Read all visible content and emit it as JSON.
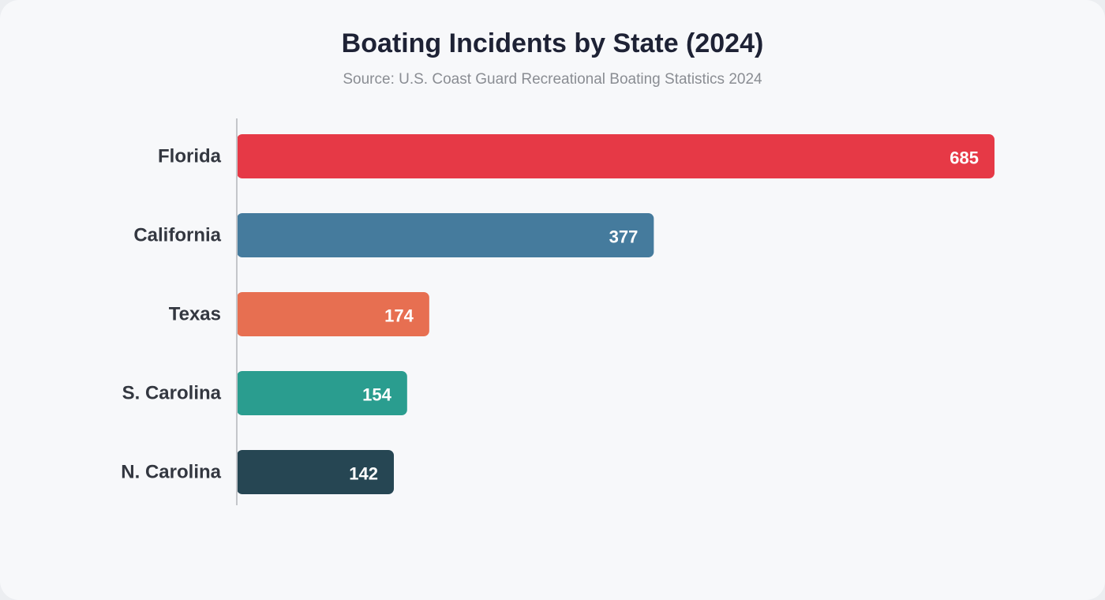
{
  "chart_data": {
    "type": "bar",
    "orientation": "horizontal",
    "title": "Boating Incidents by State (2024)",
    "subtitle": "Source: U.S. Coast Guard Recreational Boating Statistics 2024",
    "categories": [
      "Florida",
      "California",
      "Texas",
      "S. Carolina",
      "N. Carolina"
    ],
    "values": [
      685,
      377,
      174,
      154,
      142
    ],
    "colors": [
      "#e63946",
      "#457b9d",
      "#e76f51",
      "#2a9d8f",
      "#264653"
    ],
    "xlim": [
      0,
      685
    ],
    "grid": false,
    "legend": "none",
    "value_labels": "inside-end"
  }
}
